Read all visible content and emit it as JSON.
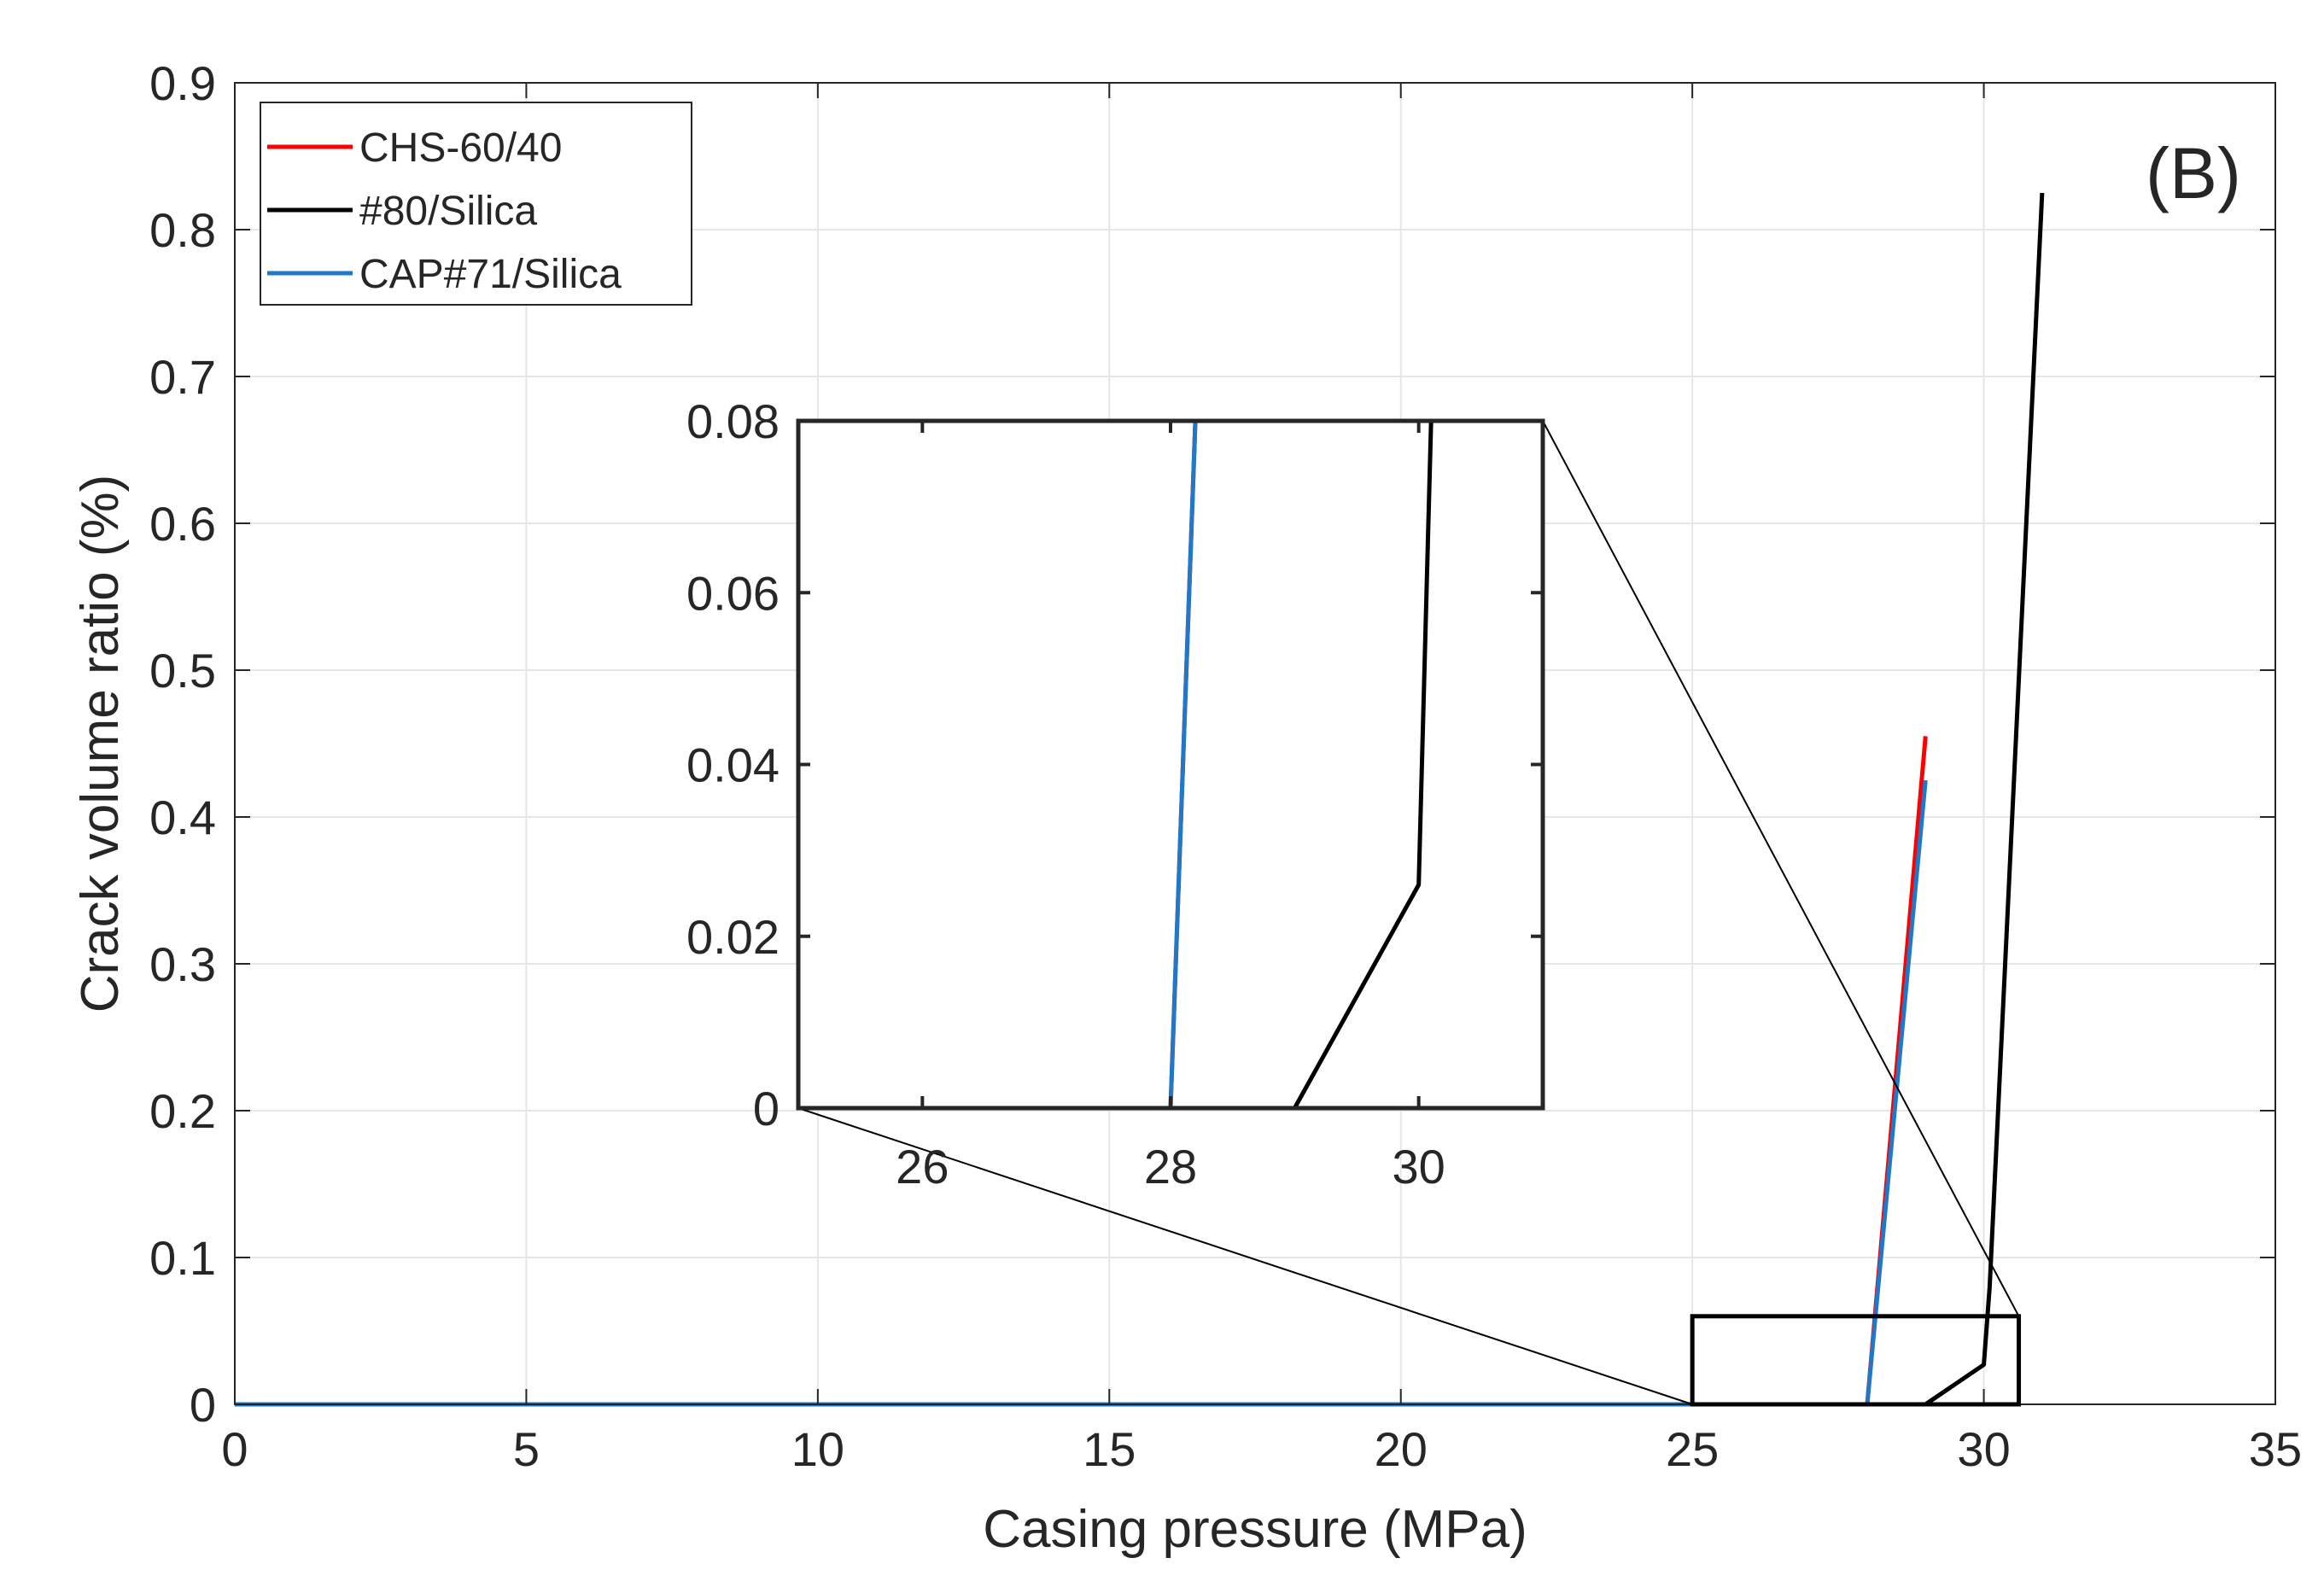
{
  "chart_data": {
    "type": "line",
    "panel_label": "(B)",
    "xlabel": "Casing pressure (MPa)",
    "ylabel": "Crack volume ratio (%)",
    "xlim": [
      0,
      35
    ],
    "ylim": [
      0,
      0.9
    ],
    "xticks": [
      0,
      5,
      10,
      15,
      20,
      25,
      30,
      35
    ],
    "yticks": [
      0,
      0.1,
      0.2,
      0.3,
      0.4,
      0.5,
      0.6,
      0.7,
      0.8,
      0.9
    ],
    "xtick_labels": [
      "0",
      "5",
      "10",
      "15",
      "20",
      "25",
      "30",
      "35"
    ],
    "ytick_labels": [
      "0",
      "0.1",
      "0.2",
      "0.3",
      "0.4",
      "0.5",
      "0.6",
      "0.7",
      "0.8",
      "0.9"
    ],
    "grid": true,
    "legend": {
      "location": "top-left",
      "entries": [
        "CHS-60/40",
        "#80/Silica",
        "CAP#71/Silica"
      ]
    },
    "series": [
      {
        "name": "CHS-60/40",
        "color": "#ff0000",
        "x": [
          0,
          28.0,
          29.0
        ],
        "y": [
          0,
          0,
          0.455
        ]
      },
      {
        "name": "#80/Silica",
        "color": "#000000",
        "x": [
          0,
          29.0,
          30.0,
          30.1,
          31.0
        ],
        "y": [
          0,
          0,
          0.027,
          0.08,
          0.825
        ]
      },
      {
        "name": "CAP#71/Silica",
        "color": "#1f78c8",
        "x": [
          0,
          28.0,
          29.0
        ],
        "y": [
          0,
          0,
          0.425
        ]
      }
    ],
    "zoom_box": {
      "xlim": [
        25,
        30.6
      ],
      "ylim": [
        0,
        0.06
      ]
    },
    "inset": {
      "xlim": [
        25,
        31
      ],
      "ylim": [
        0,
        0.08
      ],
      "xticks": [
        26,
        28,
        30
      ],
      "yticks": [
        0,
        0.02,
        0.04,
        0.06,
        0.08
      ],
      "xtick_labels": [
        "26",
        "28",
        "30"
      ],
      "ytick_labels": [
        "0",
        "0.02",
        "0.04",
        "0.06",
        "0.08"
      ],
      "series": [
        {
          "name": "CHS-60/40",
          "color": "#ff0000",
          "x": [
            25,
            28.0,
            28.2
          ],
          "y": [
            0,
            0,
            0.08
          ]
        },
        {
          "name": "#80/Silica",
          "color": "#000000",
          "x": [
            25,
            29.0,
            30.0,
            30.1
          ],
          "y": [
            0,
            0,
            0.026,
            0.08
          ]
        },
        {
          "name": "CAP#71/Silica",
          "color": "#1f78c8",
          "x": [
            25,
            28.0,
            28.2
          ],
          "y": [
            0,
            0,
            0.08
          ]
        }
      ]
    }
  }
}
